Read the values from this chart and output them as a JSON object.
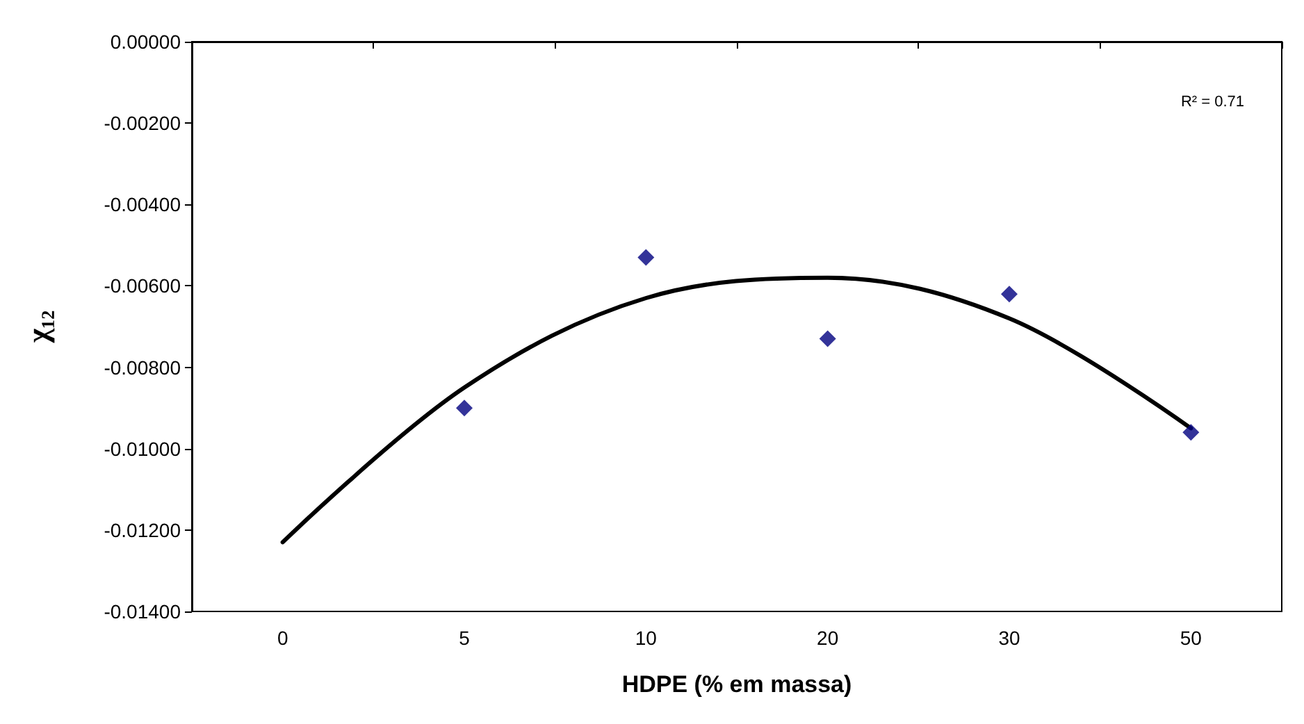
{
  "chart_data": {
    "type": "scatter",
    "xlabel": "HDPE (% em massa)",
    "ylabel": "χ₁₂",
    "categories": [
      "0",
      "5",
      "10",
      "20",
      "30",
      "50"
    ],
    "series": [
      {
        "color": "#000080",
        "x": [
          "5",
          "10",
          "20",
          "30",
          "50"
        ],
        "values": [
          -0.009,
          -0.0053,
          -0.0073,
          -0.0062,
          -0.0096
        ],
        "marker": "diamond"
      },
      {
        "type": "line",
        "color": "#000000",
        "x": [
          "0",
          "5",
          "10",
          "20",
          "30",
          "50"
        ],
        "values": [
          -0.0123,
          -0.0085,
          -0.0063,
          -0.0058,
          -0.0068,
          -0.0095
        ],
        "marker": "none",
        "line_style": "solid"
      }
    ],
    "ylim": [
      -0.014,
      0
    ],
    "yticks": [
      {
        "value": -0.014,
        "label": "-0.01400"
      },
      {
        "value": -0.012,
        "label": "-0.01200"
      },
      {
        "value": -0.01,
        "label": "-0.01000"
      },
      {
        "value": -0.008,
        "label": "-0.00800"
      },
      {
        "value": -0.006,
        "label": "-0.00600"
      },
      {
        "value": -0.004,
        "label": "-0.00400"
      },
      {
        "value": -0.002,
        "label": "-0.00200"
      },
      {
        "value": 0,
        "label": "0.00000"
      }
    ],
    "annotations": [
      "R² = 0.71"
    ],
    "grid": false
  }
}
